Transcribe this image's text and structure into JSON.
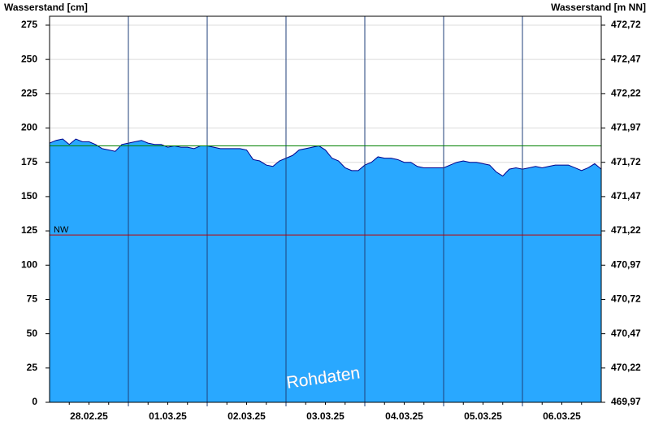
{
  "chart_data": {
    "type": "area",
    "y_axis_title": "Wasserstand [cm]",
    "y2_axis_title": "Wasserstand [m NN]",
    "watermark": "Rohdaten",
    "color": "#29a8ff",
    "line_color": "#00008b",
    "grid": true,
    "categories": [
      null,
      null,
      null,
      null,
      null,
      null,
      "28.02.25",
      null,
      null,
      null,
      null,
      null,
      null,
      null,
      null,
      null,
      null,
      null,
      "01.03.25",
      null,
      null,
      null,
      null,
      null,
      null,
      null,
      null,
      null,
      null,
      null,
      "02.03.25",
      null,
      null,
      null,
      null,
      null,
      null,
      null,
      null,
      null,
      null,
      null,
      "03.03.25",
      null,
      null,
      null,
      null,
      null,
      null,
      null,
      null,
      null,
      null,
      null,
      "04.03.25",
      null,
      null,
      null,
      null,
      null,
      null,
      null,
      null,
      null,
      null,
      null,
      "05.03.25",
      null,
      null,
      null,
      null,
      null,
      null,
      null,
      null,
      null,
      null,
      null,
      "06.03.25",
      null,
      null,
      null,
      null,
      null,
      null
    ],
    "values": [
      189,
      191,
      192,
      188,
      192,
      190,
      190,
      188,
      185,
      184,
      183,
      188,
      189,
      190,
      191,
      189,
      188,
      188,
      186,
      187,
      186,
      186,
      185,
      187,
      187,
      186,
      185,
      185,
      185,
      185,
      184,
      177,
      176,
      173,
      172,
      176,
      178,
      180,
      184,
      185,
      186,
      187,
      184,
      178,
      176,
      171,
      169,
      169,
      173,
      175,
      179,
      178,
      178,
      177,
      175,
      175,
      172,
      171,
      171,
      171,
      171,
      173,
      175,
      176,
      175,
      175,
      174,
      173,
      168,
      165,
      170,
      171,
      170,
      171,
      172,
      171,
      172,
      173,
      173,
      173,
      171,
      169,
      171,
      174,
      170
    ],
    "ylim": [
      0,
      281.5
    ],
    "yticks": [
      0,
      25,
      50,
      75,
      100,
      125,
      150,
      175,
      200,
      225,
      250,
      275
    ],
    "y2lim": [
      469.97,
      472.785
    ],
    "y2ticks": [
      {
        "value": 469.97,
        "label": "469,97"
      },
      {
        "value": 470.22,
        "label": "470,22"
      },
      {
        "value": 470.47,
        "label": "470,47"
      },
      {
        "value": 470.72,
        "label": "470,72"
      },
      {
        "value": 470.97,
        "label": "470,97"
      },
      {
        "value": 471.22,
        "label": "471,22"
      },
      {
        "value": 471.47,
        "label": "471,47"
      },
      {
        "value": 471.72,
        "label": "471,72"
      },
      {
        "value": 471.97,
        "label": "471,97"
      },
      {
        "value": 472.22,
        "label": "472,22"
      },
      {
        "value": 472.47,
        "label": "472,47"
      },
      {
        "value": 472.72,
        "label": "472,72"
      }
    ],
    "reference_lines": [
      {
        "label": "NW",
        "value": 122,
        "color": "#c00000"
      },
      {
        "value": 187,
        "color": "#008000"
      }
    ]
  }
}
